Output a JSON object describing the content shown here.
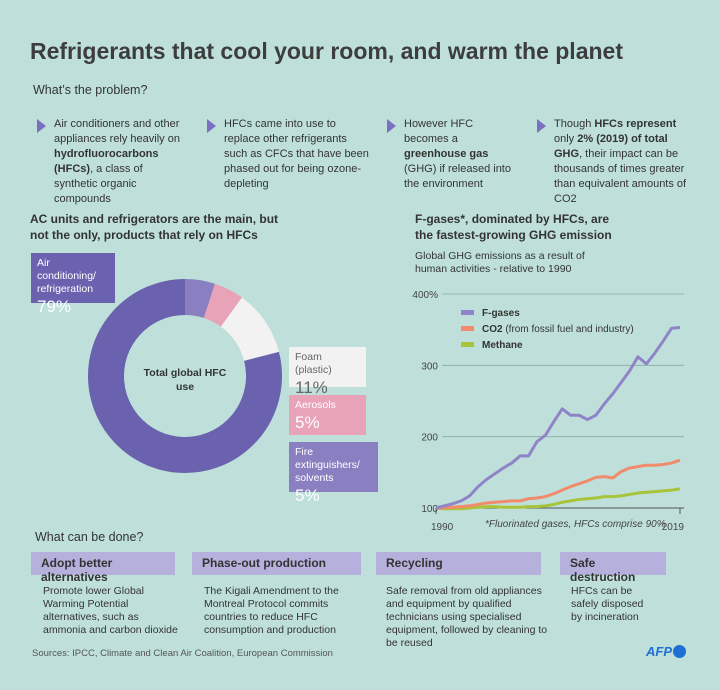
{
  "title": "Refrigerants that cool your room, and warm the planet",
  "problem": {
    "heading": "What’s the problem?",
    "bullets": [
      {
        "parts": [
          {
            "t": "Air conditioners and other appliances rely heavily on "
          },
          {
            "t": "hydrofluorocarbons (HFCs)",
            "b": true
          },
          {
            "t": ", a class of synthetic organic compounds"
          }
        ]
      },
      {
        "parts": [
          {
            "t": "HFCs came into use to replace other refrigerants such as CFCs that have been phased out for being ozone-depleting"
          }
        ]
      },
      {
        "parts": [
          {
            "t": "However HFC becomes a "
          },
          {
            "t": "greenhouse gas",
            "b": true
          },
          {
            "t": " (GHG) if released into the environment"
          }
        ]
      },
      {
        "parts": [
          {
            "t": "Though "
          },
          {
            "t": "HFCs represent",
            "b": true
          },
          {
            "t": " only "
          },
          {
            "t": "2% (2019)",
            "b": true
          },
          {
            "t": " of total GHG",
            "b": true
          },
          {
            "t": ", their impact can be thousands of times greater than equivalent amounts of CO2"
          }
        ]
      }
    ]
  },
  "colors": {
    "background": "#bfe0da",
    "ac": "#6a62ae",
    "fire": "#8a7fc0",
    "aerosols": "#e8a3b9",
    "foam": "#f2f2f2",
    "fgases": "#8f84c8",
    "co2": "#f28a6c",
    "methane": "#a7c43a",
    "action": "#b6b0dc",
    "afp": "#1d6fd6"
  },
  "chart_data": [
    {
      "type": "pie",
      "title": "AC units and refrigerators are the main, but not the only, products that rely on HFCs",
      "center_label": "Total global HFC use",
      "slices": [
        {
          "name": "Fire extinguishers/ solvents",
          "value": 5,
          "label": "5%"
        },
        {
          "name": "Aerosols",
          "value": 5,
          "label": "5%"
        },
        {
          "name": "Foam (plastic)",
          "value": 11,
          "label": "11%"
        },
        {
          "name": "Air conditioning/ refrigeration",
          "value": 79,
          "label": "79%"
        }
      ]
    },
    {
      "type": "line",
      "title": "F-gases*, dominated by HFCs, are the fastest-growing GHG emission",
      "subtitle": "Global GHG emissions as a result of human activities - relative to 1990",
      "ylim": [
        100,
        400
      ],
      "yticks": [
        "100",
        "200",
        "300",
        "400%"
      ],
      "xtick_labels": [
        "1990",
        "2019"
      ],
      "grid": true,
      "legend": "top-left",
      "note": "*Fluorinated gases, HFCs comprise 90%",
      "x": [
        1990,
        1991,
        1992,
        1993,
        1994,
        1995,
        1996,
        1997,
        1998,
        1999,
        2000,
        2001,
        2002,
        2003,
        2004,
        2005,
        2006,
        2007,
        2008,
        2009,
        2010,
        2011,
        2012,
        2013,
        2014,
        2015,
        2016,
        2017,
        2018,
        2019
      ],
      "series": [
        {
          "name": "F-gases",
          "values": [
            100,
            103,
            106,
            110,
            117,
            130,
            140,
            148,
            156,
            163,
            173,
            173,
            193,
            202,
            221,
            239,
            230,
            230,
            224,
            230,
            246,
            260,
            276,
            292,
            312,
            302,
            317,
            334,
            352,
            353
          ]
        },
        {
          "name": "CO2",
          "label_suffix": " (from fossil fuel and industry)",
          "values": [
            100,
            100,
            101,
            102,
            103,
            105,
            107,
            108,
            109,
            110,
            110,
            113,
            114,
            116,
            120,
            125,
            130,
            134,
            138,
            143,
            144,
            142,
            151,
            156,
            158,
            160,
            160,
            161,
            163,
            167
          ]
        },
        {
          "name": "Methane",
          "values": [
            100,
            99,
            99,
            99,
            100,
            101,
            102,
            102,
            101,
            101,
            101,
            102,
            102,
            103,
            105,
            108,
            110,
            112,
            113,
            114,
            116,
            116,
            117,
            119,
            121,
            122,
            123,
            124,
            125,
            127
          ]
        }
      ]
    }
  ],
  "actions": {
    "heading": "What can be done?",
    "items": [
      {
        "title": "Adopt better alternatives",
        "text": "Promote lower Global Warming Potential alternatives, such as ammonia and carbon dioxide"
      },
      {
        "title": "Phase-out production",
        "text": "The Kigali Amendment to the Montreal Protocol commits countries to reduce HFC consumption and production"
      },
      {
        "title": "Recycling",
        "text": "Safe removal from old appliances and equipment by qualified technicians using specialised equipment, followed by cleaning to be reused"
      },
      {
        "title": "Safe destruction",
        "text": "HFCs can be safely disposed by incineration"
      }
    ]
  },
  "sources": "Sources: IPCC, Climate and Clean Air Coalition, European Commission",
  "logo": "AFP"
}
